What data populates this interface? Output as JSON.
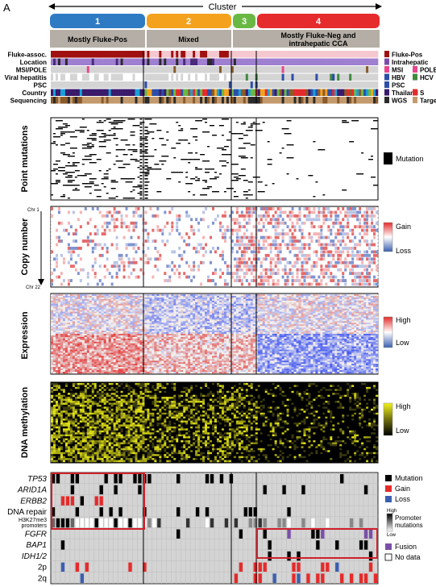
{
  "panel_label": "A",
  "cluster_header": "Cluster",
  "clusters": [
    {
      "num": "1",
      "label": "Mostly Fluke-Pos",
      "color": "#2e7bc4"
    },
    {
      "num": "2",
      "label": "Mixed",
      "color": "#f4a21d"
    },
    {
      "num": "3",
      "label": "",
      "color": "#6ab844"
    },
    {
      "num": "4",
      "label": "Mostly Fluke-Neg and intrahepatic CCA",
      "color": "#e52b2b"
    }
  ],
  "cluster4_label_line1": "Mostly Fluke-Neg and",
  "cluster4_label_line2": "intrahepatic CCA",
  "annotation_tracks": [
    "Fluke-assoc.",
    "Location",
    "MSI/POLE",
    "Viral hepatitis",
    "PSC",
    "Country",
    "Sequencing"
  ],
  "annotation_legend": [
    {
      "label": "Fluke-Pos",
      "color": "#a01010"
    },
    {
      "label": "Intrahepatic",
      "color": "#7b4fa8"
    },
    {
      "label": "MSI",
      "color": "#e8468c"
    },
    {
      "label": "POLE",
      "color": "#e8468c"
    },
    {
      "label": "HBV",
      "color": "#2c4ea8"
    },
    {
      "label": "HCV",
      "color": "#3d8a3d"
    },
    {
      "label": "PSC",
      "color": "#2c4ea8"
    },
    {
      "label": "Thailand",
      "color": "#3a1a6b"
    },
    {
      "label": "S",
      "color": "#e52b2b"
    },
    {
      "label": "WGS",
      "color": "#2b2b2b"
    },
    {
      "label": "Targe",
      "color": "#c49a6c"
    }
  ],
  "sections": {
    "point_mutations": "Point mutations",
    "copy_number": "Copy number",
    "expression": "Expression",
    "methylation": "DNA methylation"
  },
  "chr_top": "Chr 1",
  "chr_bottom": "Chr 22",
  "legends": {
    "mutation": "Mutation",
    "gain": "Gain",
    "loss": "Loss",
    "high": "High",
    "low": "Low"
  },
  "gene_rows": [
    "TP53",
    "ARID1A",
    "ERBB2",
    "DNA repair",
    "H3K27me3 promoters",
    "FGFR",
    "BAP1",
    "IDH1/2",
    "2p",
    "2q"
  ],
  "gene_italic": [
    true,
    true,
    true,
    false,
    false,
    true,
    true,
    true,
    false,
    false
  ],
  "bottom_legend": {
    "mutation": "Mutation",
    "gain": "Gain",
    "loss": "Loss",
    "high": "High",
    "promoter": "Promoter",
    "mutations": "mutations",
    "low": "Low",
    "fusion": "Fusion",
    "nodata": "No data"
  },
  "colors": {
    "cluster_gray": "#b5aea6",
    "gain": "#e52b2b",
    "loss": "#3b5fb0",
    "fusion": "#7b4fa8",
    "grid_gray": "#d4d4d4",
    "methyl_yellow": "#e8e81a",
    "box_red": "#d0202a"
  }
}
